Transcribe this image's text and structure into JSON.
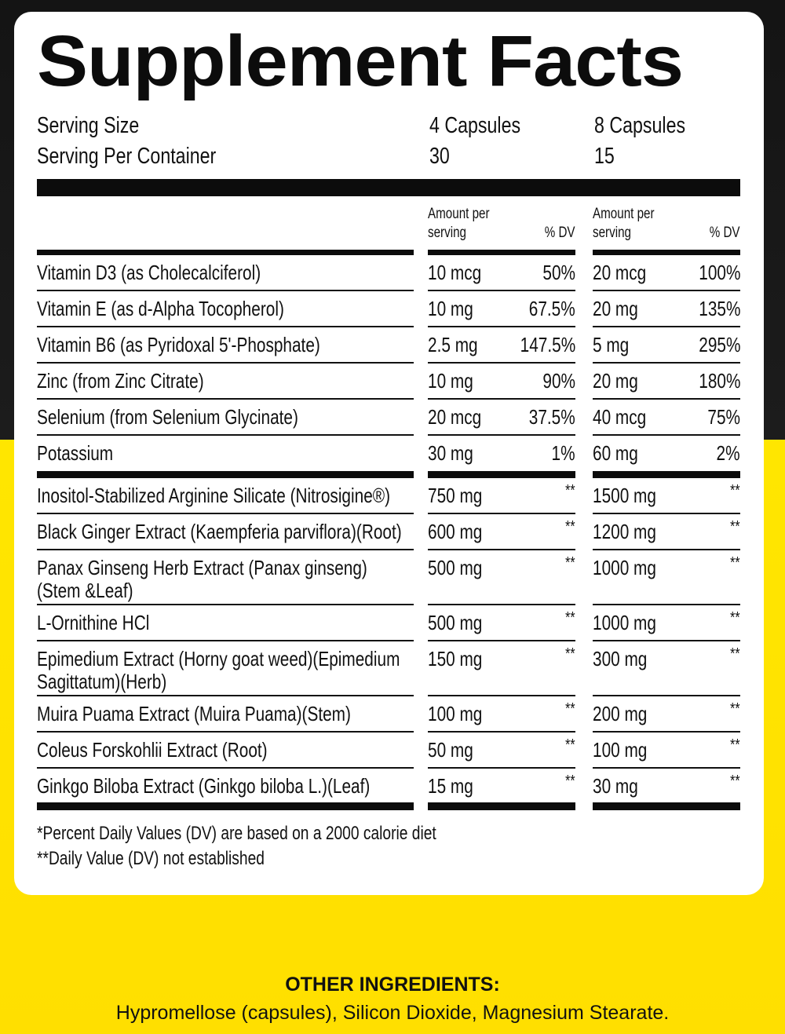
{
  "title": "Supplement Facts",
  "serving": {
    "size_label": "Serving Size",
    "per_container_label": "Serving Per Container",
    "size_1": "4 Capsules",
    "size_2": "8 Capsules",
    "per_container_1": "30",
    "per_container_2": "15"
  },
  "header": {
    "amount_1": "Amount per",
    "amount_2": "serving",
    "dv": "% DV"
  },
  "vitamins": [
    {
      "name": [
        "Vitamin D3 (as Cholecalciferol)"
      ],
      "a1": "10 mcg",
      "d1": "50%",
      "a2": "20 mcg",
      "d2": "100%"
    },
    {
      "name": [
        "Vitamin E (as d-Alpha Tocopherol)"
      ],
      "a1": "10 mg",
      "d1": "67.5%",
      "a2": "20 mg",
      "d2": "135%"
    },
    {
      "name": [
        "Vitamin B6 (as Pyridoxal 5'-Phosphate)"
      ],
      "a1": "2.5 mg",
      "d1": "147.5%",
      "a2": "5 mg",
      "d2": "295%"
    },
    {
      "name": [
        "Zinc (from Zinc Citrate)"
      ],
      "a1": "10 mg",
      "d1": "90%",
      "a2": "20 mg",
      "d2": "180%"
    },
    {
      "name": [
        "Selenium (from Selenium Glycinate)"
      ],
      "a1": "20 mcg",
      "d1": "37.5%",
      "a2": "40 mcg",
      "d2": "75%"
    },
    {
      "name": [
        "Potassium"
      ],
      "a1": "30 mg",
      "d1": "1%",
      "a2": "60 mg",
      "d2": "2%"
    }
  ],
  "blend": [
    {
      "name": [
        "Inositol-Stabilized Arginine Silicate (Nitrosigine®)"
      ],
      "a1": "750 mg",
      "d1": "**",
      "a2": "1500 mg",
      "d2": "**"
    },
    {
      "name": [
        "Black Ginger Extract (Kaempferia parviflora)(Root)"
      ],
      "a1": "600 mg",
      "d1": "**",
      "a2": "1200 mg",
      "d2": "**"
    },
    {
      "name": [
        "Panax Ginseng Herb Extract (Panax ginseng)",
        "(Stem &Leaf)"
      ],
      "a1": "500 mg",
      "d1": "**",
      "a2": "1000 mg",
      "d2": "**"
    },
    {
      "name": [
        "L-Ornithine HCl"
      ],
      "a1": "500 mg",
      "d1": "**",
      "a2": "1000 mg",
      "d2": "**"
    },
    {
      "name": [
        "Epimedium Extract (Horny goat weed)(Epimedium",
        "Sagittatum)(Herb)"
      ],
      "a1": "150 mg",
      "d1": "**",
      "a2": "300 mg",
      "d2": "**"
    },
    {
      "name": [
        "Muira Puama Extract (Muira Puama)(Stem)"
      ],
      "a1": "100 mg",
      "d1": "**",
      "a2": "200 mg",
      "d2": "**"
    },
    {
      "name": [
        "Coleus Forskohlii Extract (Root)"
      ],
      "a1": "50 mg",
      "d1": "**",
      "a2": "100 mg",
      "d2": "**"
    },
    {
      "name": [
        "Ginkgo Biloba Extract (Ginkgo biloba L.)(Leaf)"
      ],
      "a1": "15 mg",
      "d1": "**",
      "a2": "30 mg",
      "d2": "**"
    }
  ],
  "footnotes": [
    "*Percent Daily Values (DV) are based on a 2000 calorie diet",
    "**Daily Value (DV) not established"
  ],
  "other_ingredients": {
    "heading": "OTHER INGREDIENTS:",
    "text": "Hypromellose (capsules), Silicon Dioxide, Magnesium Stearate."
  }
}
